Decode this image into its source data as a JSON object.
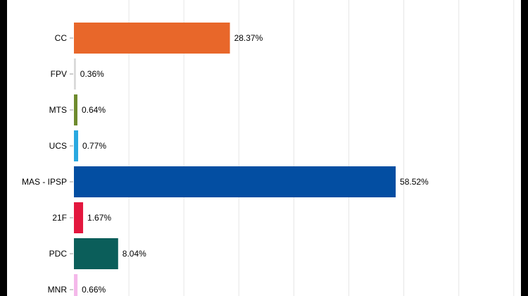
{
  "chart_data": {
    "type": "bar",
    "orientation": "horizontal",
    "categories": [
      "CC",
      "FPV",
      "MTS",
      "UCS",
      "MAS - IPSP",
      "21F",
      "PDC",
      "MNR"
    ],
    "values": [
      28.37,
      0.36,
      0.64,
      0.77,
      58.52,
      1.67,
      8.04,
      0.66
    ],
    "value_labels": [
      "28.37%",
      "0.36%",
      "0.64%",
      "0.77%",
      "58.52%",
      "1.67%",
      "8.04%",
      "0.66%"
    ],
    "colors": [
      "#E8672A",
      "#D9D9D9",
      "#6E8B2E",
      "#29A8E0",
      "#034EA2",
      "#E3173E",
      "#0B5E5A",
      "#F4B8EA"
    ],
    "xlim": [
      0,
      80
    ],
    "grid": true,
    "title": "",
    "xlabel": "",
    "ylabel": ""
  }
}
